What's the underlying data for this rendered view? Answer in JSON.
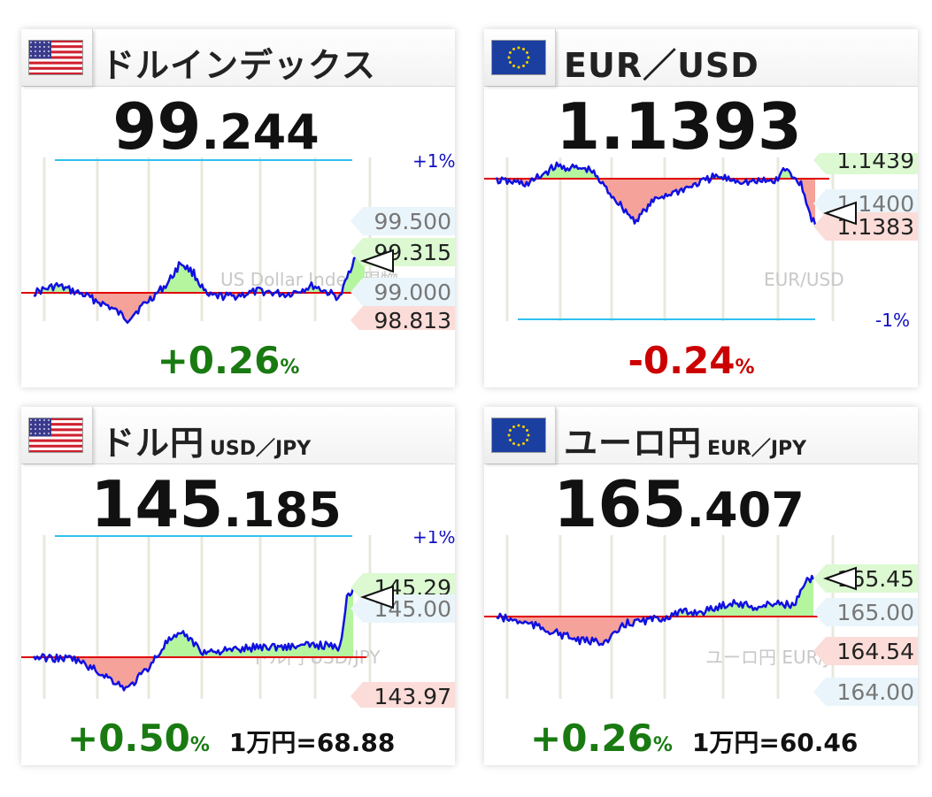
{
  "colors": {
    "positive": "#1a7a12",
    "negative": "#cc0000",
    "line": "#1010e0",
    "base_line": "#e00000",
    "band_line": "#30c0f0",
    "fill_up": "#b4f59e",
    "fill_down": "#f4a29a",
    "tag_up": "#dcf9d2",
    "tag_down": "#fbdcd8",
    "tag_neutral": "#eaf5fb"
  },
  "panels": [
    {
      "flag": "us-flag-icon",
      "title": "ドルインデックス",
      "subtitle": "",
      "price_int": "99",
      "price_dec": ".244",
      "change": "+0.26",
      "change_unit": "%",
      "change_dir": "pos",
      "extra": "",
      "watermark": "US Dollar Index 現物",
      "band_label": "+1%",
      "tags": [
        {
          "text": "99.500",
          "kind": "neutral"
        },
        {
          "text": "99.315",
          "kind": "up"
        },
        {
          "text": "99.000",
          "kind": "neutral"
        },
        {
          "text": "98.813",
          "kind": "down"
        }
      ]
    },
    {
      "flag": "eu-flag-icon",
      "title": "EUR／USD",
      "subtitle": "",
      "price_int": "1.1393",
      "price_dec": "",
      "change": "-0.24",
      "change_unit": "%",
      "change_dir": "neg",
      "extra": "",
      "watermark": "EUR/USD",
      "band_label": "-1%",
      "tags": [
        {
          "text": "1.1439",
          "kind": "up"
        },
        {
          "text": "1.1400",
          "kind": "neutral"
        },
        {
          "text": "1.1383",
          "kind": "down"
        }
      ]
    },
    {
      "flag": "us-flag-icon",
      "title": "ドル円",
      "subtitle": "USD／JPY",
      "price_int": "145",
      "price_dec": ".185",
      "change": "+0.50",
      "change_unit": "%",
      "change_dir": "pos",
      "extra": "1万円=68.88",
      "watermark": "ドル円 USD/JPY",
      "band_label": "+1%",
      "tags": [
        {
          "text": "145.29",
          "kind": "up"
        },
        {
          "text": "145.00",
          "kind": "neutral"
        },
        {
          "text": "143.97",
          "kind": "down"
        }
      ]
    },
    {
      "flag": "eu-flag-icon",
      "title": "ユーロ円",
      "subtitle": "EUR／JPY",
      "price_int": "165",
      "price_dec": ".407",
      "change": "+0.26",
      "change_unit": "%",
      "change_dir": "pos",
      "extra": "1万円=60.46",
      "watermark": "ユーロ円 EUR/JPY",
      "band_label": "",
      "tags": [
        {
          "text": "165.45",
          "kind": "up"
        },
        {
          "text": "165.00",
          "kind": "neutral"
        },
        {
          "text": "164.54",
          "kind": "down"
        },
        {
          "text": "164.00",
          "kind": "neutral"
        }
      ]
    }
  ]
}
